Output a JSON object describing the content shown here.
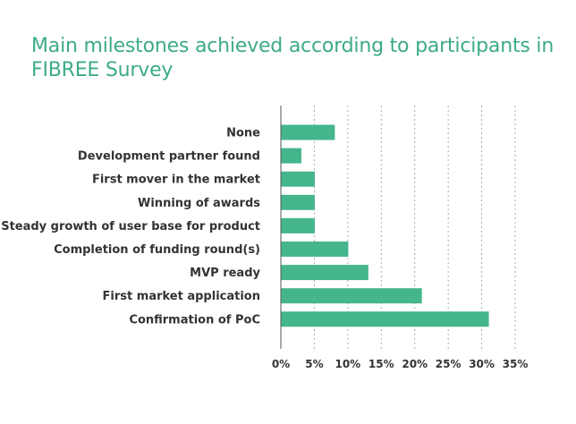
{
  "chart_data": {
    "type": "bar",
    "orientation": "horizontal",
    "title": "Main milestones achieved according to participants in",
    "subtitle": "FIBREE Survey",
    "categories": [
      "None",
      "Development partner found",
      "First mover in the market",
      "Winning of awards",
      "Steady growth of user base for product",
      "Completion of funding round(s)",
      "MVP ready",
      "First market application",
      "Confirmation of PoC"
    ],
    "values": [
      8,
      3,
      5,
      5,
      5,
      10,
      13,
      21,
      31
    ],
    "xlim": [
      0,
      35
    ],
    "xticks": [
      "0%",
      "5%",
      "10%",
      "15%",
      "20%",
      "25%",
      "30%",
      "35%"
    ],
    "unit": "%",
    "grid": "vertical dashed",
    "bar_color": "#45b68c"
  }
}
